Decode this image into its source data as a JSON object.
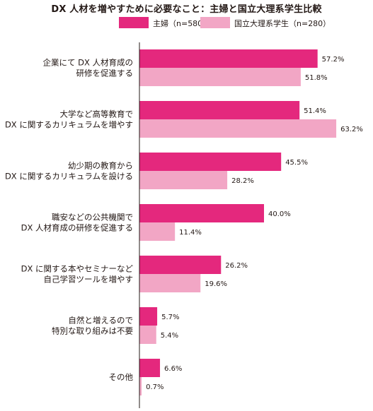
{
  "title": "DX 人材を増やすために必要なこと：主婦と国立大理系学生比較",
  "colors": {
    "series1": "#e4287d",
    "series2": "#f2a6c5",
    "axis": "#231815"
  },
  "chart_data": {
    "type": "bar",
    "orientation": "horizontal",
    "title": "DX 人材を増やすために必要なこと：主婦と国立大理系学生比較",
    "legend_position": "top",
    "grid": false,
    "xlim": [
      0,
      70
    ],
    "unit": "%",
    "categories": [
      [
        "企業にて DX 人材育成の",
        "研修を促進する"
      ],
      [
        "大学など高等教育で",
        "DX に関するカリキュラムを増やす"
      ],
      [
        "幼少期の教育から",
        "DX に関するカリキュラムを設ける"
      ],
      [
        "職安などの公共機関で",
        "DX 人材育成の研修を促進する"
      ],
      [
        "DX に関する本やセミナーなど",
        "自己学習ツールを増やす"
      ],
      [
        "自然と増えるので",
        "特別な取り組みは不要"
      ],
      [
        "その他"
      ]
    ],
    "series": [
      {
        "name": "主婦（n=580）",
        "color": "#e4287d",
        "values": [
          57.2,
          51.4,
          45.5,
          40.0,
          26.2,
          5.7,
          6.6
        ],
        "labels": [
          "57.2%",
          "51.4%",
          "45.5%",
          "40.0%",
          "26.2%",
          "5.7%",
          "6.6%"
        ]
      },
      {
        "name": "国立大理系学生（n=280）",
        "color": "#f2a6c5",
        "values": [
          51.8,
          63.2,
          28.2,
          11.4,
          19.6,
          5.4,
          0.7
        ],
        "labels": [
          "51.8%",
          "63.2%",
          "28.2%",
          "11.4%",
          "19.6%",
          "5.4%",
          "0.7%"
        ]
      }
    ]
  }
}
